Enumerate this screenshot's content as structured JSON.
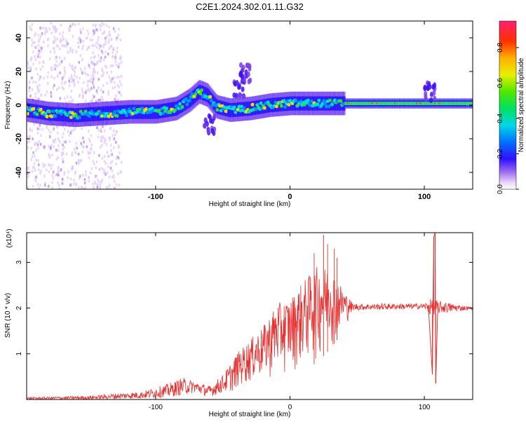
{
  "title": "C2E1.2024.302.01.11.G32",
  "chart_data": [
    {
      "type": "heatmap",
      "xlabel": "Height of straight line (km)",
      "ylabel": "Frequency (Hz)",
      "xlim": [
        -196,
        136
      ],
      "ylim": [
        -50,
        50
      ],
      "x_ticks": [
        -100,
        0,
        100
      ],
      "x_ticklabels": [
        "-100",
        "0",
        "100"
      ],
      "y_ticks": [
        -40,
        -20,
        0,
        20,
        40
      ],
      "y_ticklabels": [
        "-40",
        "-20",
        "0",
        "20",
        "40"
      ],
      "colorbar": {
        "label": "Normalized spectral amplitude",
        "range": [
          0,
          0.95
        ],
        "ticks": [
          0.0,
          0.2,
          0.4,
          0.6,
          0.8
        ],
        "ticklabels": [
          "0.0",
          "0.2",
          "0.4",
          "0.6",
          "0.8"
        ]
      },
      "ridge": [
        {
          "x": -196,
          "f": -3
        },
        {
          "x": -180,
          "f": -5
        },
        {
          "x": -160,
          "f": -6
        },
        {
          "x": -140,
          "f": -5
        },
        {
          "x": -120,
          "f": -4
        },
        {
          "x": -100,
          "f": -4
        },
        {
          "x": -85,
          "f": -2
        },
        {
          "x": -75,
          "f": 3
        },
        {
          "x": -68,
          "f": 8
        },
        {
          "x": -62,
          "f": 6
        },
        {
          "x": -55,
          "f": -1
        },
        {
          "x": -45,
          "f": -3
        },
        {
          "x": -30,
          "f": -2
        },
        {
          "x": -15,
          "f": 0
        },
        {
          "x": 0,
          "f": 1
        },
        {
          "x": 20,
          "f": 1
        },
        {
          "x": 40,
          "f": 1
        },
        {
          "x": 100,
          "f": 1
        },
        {
          "x": 136,
          "f": 1
        }
      ],
      "features": [
        {
          "x": -60,
          "f": -12
        },
        {
          "x": -38,
          "f": 10
        },
        {
          "x": -33,
          "f": 18
        },
        {
          "x": 104,
          "f": 8
        }
      ]
    },
    {
      "type": "line",
      "xlabel": "Height of straight line (km)",
      "ylabel": "SNR (10 * v/v)",
      "y_multiplier": "(x10⁴)",
      "xlim": [
        -196,
        136
      ],
      "ylim": [
        0,
        3.65
      ],
      "x_ticks": [
        -100,
        0,
        100
      ],
      "x_ticklabels": [
        "-100",
        "0",
        "100"
      ],
      "y_ticks": [
        1,
        2,
        3
      ],
      "y_ticklabels": [
        "1",
        "2",
        "3"
      ],
      "color": "#e8302f",
      "envelope": [
        {
          "x": -196,
          "lo": 0.0,
          "hi": 0.05
        },
        {
          "x": -150,
          "lo": 0.0,
          "hi": 0.08
        },
        {
          "x": -110,
          "lo": 0.02,
          "hi": 0.18
        },
        {
          "x": -90,
          "lo": 0.05,
          "hi": 0.35
        },
        {
          "x": -80,
          "lo": 0.1,
          "hi": 0.48
        },
        {
          "x": -70,
          "lo": 0.15,
          "hi": 0.4
        },
        {
          "x": -60,
          "lo": 0.05,
          "hi": 0.3
        },
        {
          "x": -50,
          "lo": 0.15,
          "hi": 0.55
        },
        {
          "x": -40,
          "lo": 0.2,
          "hi": 1.0
        },
        {
          "x": -30,
          "lo": 0.3,
          "hi": 1.3
        },
        {
          "x": -20,
          "lo": 0.35,
          "hi": 1.6
        },
        {
          "x": -10,
          "lo": 0.45,
          "hi": 2.1
        },
        {
          "x": 0,
          "lo": 0.55,
          "hi": 2.2
        },
        {
          "x": 10,
          "lo": 0.65,
          "hi": 2.6
        },
        {
          "x": 20,
          "lo": 0.8,
          "hi": 2.9
        },
        {
          "x": 30,
          "lo": 1.1,
          "hi": 2.9
        },
        {
          "x": 40,
          "lo": 1.5,
          "hi": 2.4
        },
        {
          "x": 47,
          "lo": 1.95,
          "hi": 2.1
        },
        {
          "x": 100,
          "lo": 1.98,
          "hi": 2.1
        },
        {
          "x": 104,
          "lo": 1.85,
          "hi": 2.2
        },
        {
          "x": 136,
          "lo": 1.97,
          "hi": 2.02
        }
      ],
      "spikes": [
        {
          "x": 25,
          "y": 3.6
        },
        {
          "x": 28,
          "y": 3.4
        },
        {
          "x": 18,
          "y": 3.2
        },
        {
          "x": 33,
          "y": 3.3
        },
        {
          "x": 35,
          "y": 3.1
        },
        {
          "x": 107,
          "y": 3.55
        },
        {
          "x": 108,
          "y": 3.65
        },
        {
          "x": 108.5,
          "y": 0.35
        },
        {
          "x": 106,
          "y": 0.55
        }
      ],
      "spike_lines": [
        {
          "x1": 103,
          "y1": 2.05,
          "x2": 106,
          "y2": 0.55
        },
        {
          "x1": 106,
          "y1": 0.55,
          "x2": 107,
          "y2": 3.55
        },
        {
          "x1": 107,
          "y1": 3.55,
          "x2": 108,
          "y2": 3.65
        },
        {
          "x1": 108,
          "y1": 3.65,
          "x2": 108.5,
          "y2": 0.35
        },
        {
          "x1": 108.5,
          "y1": 0.35,
          "x2": 110,
          "y2": 2.0
        }
      ]
    }
  ]
}
